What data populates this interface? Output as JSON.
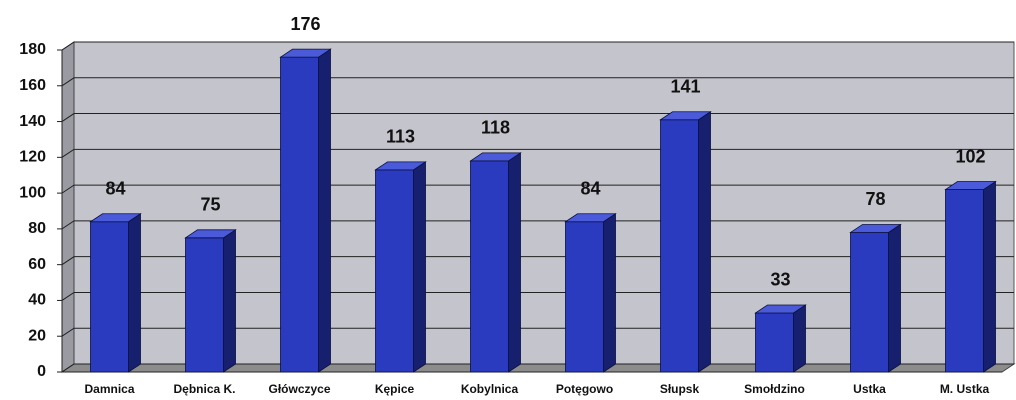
{
  "chart_data": {
    "type": "bar3d",
    "categories": [
      "Damnica",
      "Dębnica K.",
      "Główczyce",
      "Kępice",
      "Kobylnica",
      "Potęgowo",
      "Słupsk",
      "Smołdzino",
      "Ustka",
      "M. Ustka"
    ],
    "values": [
      84,
      75,
      176,
      113,
      118,
      84,
      141,
      33,
      78,
      102
    ],
    "color": "#2b3bbf",
    "ylim": [
      0,
      180
    ],
    "yticks": [
      0,
      20,
      40,
      60,
      80,
      100,
      120,
      140,
      160,
      180
    ],
    "grid": true
  }
}
